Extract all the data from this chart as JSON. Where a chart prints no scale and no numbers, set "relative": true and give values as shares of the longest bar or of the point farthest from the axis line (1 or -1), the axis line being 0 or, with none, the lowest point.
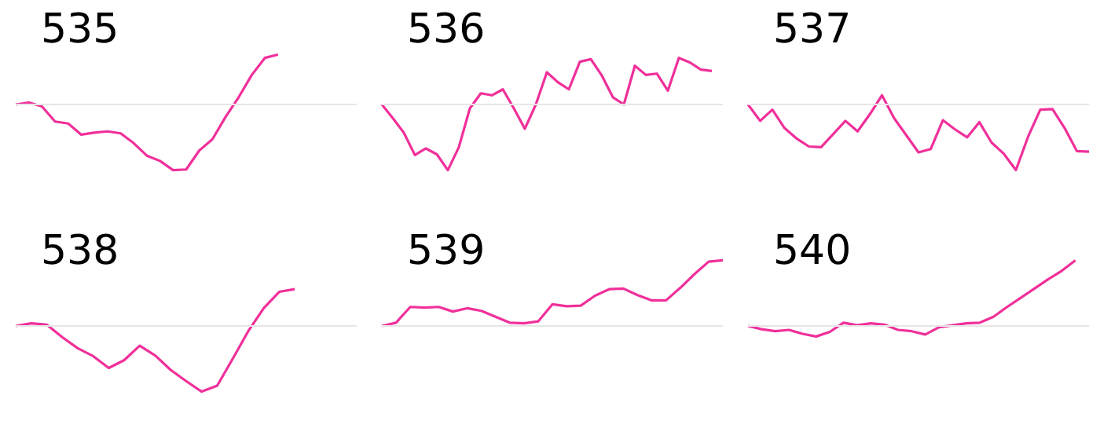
{
  "chart_data": [
    {
      "type": "line",
      "title": "535",
      "relative": true,
      "categories": [
        null,
        null,
        null,
        null,
        null,
        null,
        null,
        null,
        null,
        null,
        null,
        null,
        null,
        null,
        null,
        null,
        null,
        null,
        null,
        null,
        null,
        null,
        null,
        null,
        null,
        null,
        null
      ],
      "series": [
        {
          "color": "#f0309a",
          "values": [
            0,
            0.03,
            -0.03,
            -0.26,
            -0.29,
            -0.46,
            -0.43,
            -0.41,
            -0.44,
            -0.59,
            -0.78,
            -0.86,
            -1,
            -0.99,
            -0.7,
            -0.53,
            -0.19,
            0.11,
            0.45,
            0.71,
            0.76,
            null,
            null,
            null,
            null,
            null,
            null
          ]
        }
      ]
    },
    {
      "type": "line",
      "title": "536",
      "relative": true,
      "categories": [
        null,
        null,
        null,
        null,
        null,
        null,
        null,
        null,
        null,
        null,
        null,
        null,
        null,
        null,
        null,
        null,
        null,
        null,
        null,
        null,
        null,
        null,
        null,
        null,
        null,
        null,
        null,
        null,
        null,
        null,
        null,
        null
      ],
      "series": [
        {
          "color": "#f0309a",
          "values": [
            0,
            -0.21,
            -0.43,
            -0.77,
            -0.67,
            -0.76,
            -1,
            -0.65,
            -0.06,
            0.17,
            0.14,
            0.23,
            -0.06,
            -0.37,
            0,
            0.49,
            0.34,
            0.23,
            0.65,
            0.69,
            0.44,
            0.11,
            0,
            0.59,
            0.45,
            0.47,
            0.21,
            0.71,
            0.64,
            0.53,
            0.51,
            null
          ]
        }
      ]
    },
    {
      "type": "line",
      "title": "537",
      "relative": true,
      "categories": [
        null,
        null,
        null,
        null,
        null,
        null,
        null,
        null,
        null,
        null,
        null,
        null,
        null,
        null,
        null,
        null,
        null,
        null,
        null,
        null,
        null,
        null,
        null,
        null,
        null,
        null,
        null,
        null,
        null
      ],
      "series": [
        {
          "color": "#f0309a",
          "values": [
            0,
            -0.25,
            -0.08,
            -0.36,
            -0.52,
            -0.64,
            -0.65,
            -0.45,
            -0.25,
            -0.41,
            -0.15,
            0.14,
            -0.21,
            -0.47,
            -0.73,
            -0.68,
            -0.24,
            -0.38,
            -0.5,
            -0.27,
            -0.58,
            -0.75,
            -1,
            -0.49,
            -0.08,
            -0.07,
            -0.36,
            -0.71,
            -0.72
          ]
        }
      ]
    },
    {
      "type": "line",
      "title": "538",
      "relative": true,
      "categories": [
        null,
        null,
        null,
        null,
        null,
        null,
        null,
        null,
        null,
        null,
        null,
        null,
        null,
        null,
        null,
        null,
        null,
        null,
        null,
        null,
        null,
        null,
        null
      ],
      "series": [
        {
          "color": "#f0309a",
          "values": [
            0,
            0.04,
            0.02,
            -0.17,
            -0.34,
            -0.46,
            -0.64,
            -0.52,
            -0.3,
            -0.45,
            -0.67,
            -0.84,
            -1,
            -0.91,
            -0.5,
            -0.08,
            0.27,
            0.52,
            0.56,
            null,
            null,
            null,
            null
          ]
        }
      ]
    },
    {
      "type": "line",
      "title": "539",
      "relative": true,
      "categories": [
        null,
        null,
        null,
        null,
        null,
        null,
        null,
        null,
        null,
        null,
        null,
        null,
        null,
        null,
        null,
        null,
        null,
        null,
        null,
        null,
        null,
        null,
        null,
        null,
        null
      ],
      "series": [
        {
          "color": "#f0309a",
          "values": [
            0,
            0.05,
            0.29,
            0.28,
            0.29,
            0.22,
            0.27,
            0.23,
            0.14,
            0.05,
            0.04,
            0.07,
            0.33,
            0.3,
            0.31,
            0.46,
            0.56,
            0.57,
            0.47,
            0.39,
            0.39,
            0.58,
            0.79,
            0.98,
            1
          ]
        }
      ]
    },
    {
      "type": "line",
      "title": "540",
      "relative": true,
      "categories": [
        null,
        null,
        null,
        null,
        null,
        null,
        null,
        null,
        null,
        null,
        null,
        null,
        null,
        null,
        null,
        null,
        null,
        null,
        null,
        null,
        null,
        null,
        null,
        null,
        null,
        null
      ],
      "series": [
        {
          "color": "#f0309a",
          "values": [
            0,
            -0.05,
            -0.08,
            -0.06,
            -0.12,
            -0.16,
            -0.09,
            0.05,
            0.01,
            0.04,
            0.02,
            -0.06,
            -0.08,
            -0.13,
            -0.02,
            0.01,
            0.04,
            0.05,
            0.14,
            0.29,
            0.43,
            0.57,
            0.71,
            0.84,
            1,
            null
          ]
        }
      ]
    }
  ]
}
